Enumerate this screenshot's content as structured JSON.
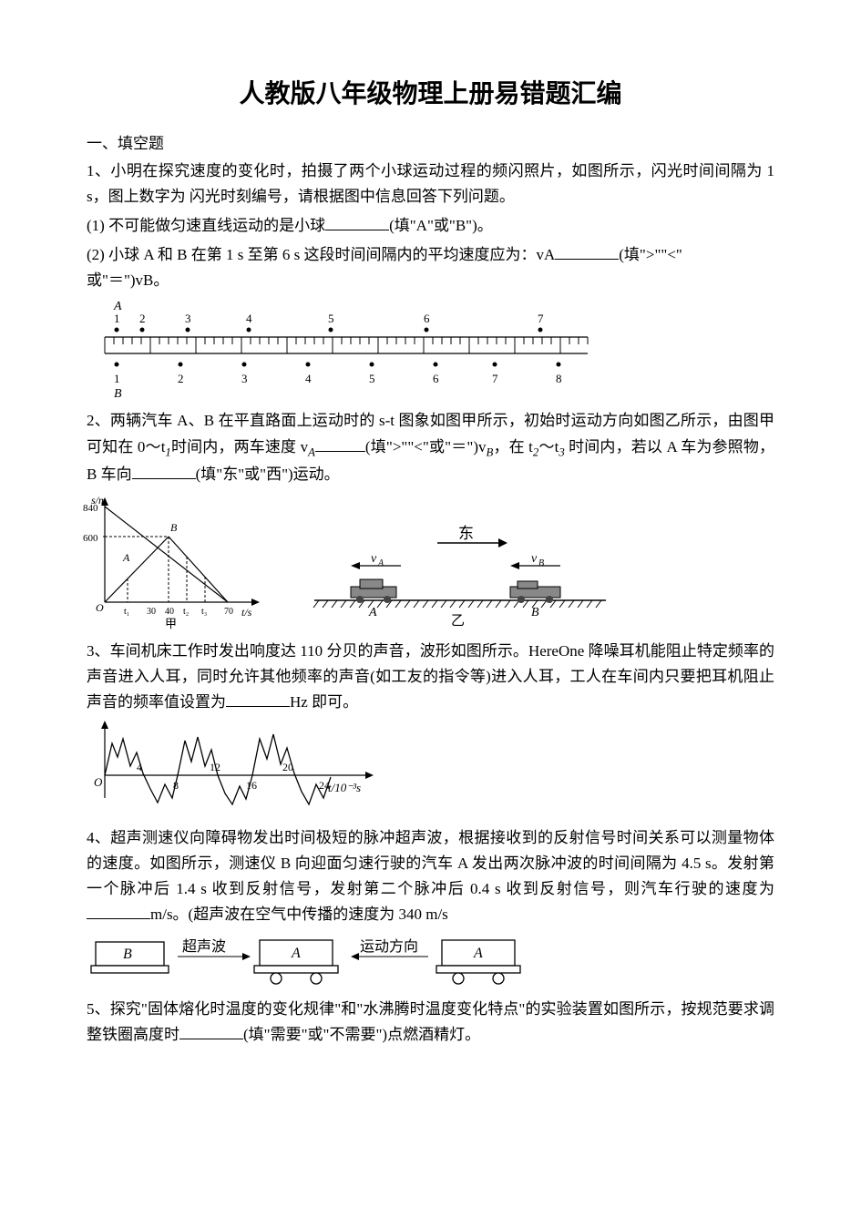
{
  "title": "人教版八年级物理上册易错题汇编",
  "section1_header": "一、填空题",
  "q1": {
    "line1": "1、小明在探究速度的变化时，拍摄了两个小球运动过程的频闪照片，如图所示，闪光时间间隔为 1 s，图上数字为 闪光时刻编号，请根据图中信息回答下列问题。",
    "sub1_pre": "(1)  不可能做匀速直线运动的是小球",
    "sub1_post": "(填\"A\"或\"B\")。",
    "sub2_pre": "(2)  小球 A 和 B 在第 1 s 至第 6 s 这段时间间隔内的平均速度应为：vA",
    "sub2_mid": "(填\">\"\"<\"",
    "sub2_line2": "或\"＝\")vB。",
    "diagram": {
      "topLabels": [
        "1",
        "2",
        "3",
        "4",
        "5",
        "6",
        "7"
      ],
      "topLabelX": [
        30,
        58,
        108,
        175,
        265,
        370,
        495
      ],
      "topDotsX": [
        30,
        58,
        108,
        175,
        265,
        370,
        495
      ],
      "bottomLabels": [
        "1",
        "2",
        "3",
        "4",
        "5",
        "6",
        "7",
        "8"
      ],
      "bottomDotsX": [
        30,
        100,
        170,
        240,
        310,
        380,
        445,
        515
      ],
      "bottomLabelX": [
        30,
        100,
        170,
        240,
        310,
        380,
        445,
        515
      ],
      "rulerLen": 530,
      "tickCount": 53,
      "labelA": "A",
      "labelB": "B"
    }
  },
  "q2": {
    "line1_a": "2、两辆汽车 A、B 在平直路面上运动时的 s-t 图象如图甲所示，初始时运动方向如图乙所示，由图甲可知在 0～t",
    "line1_b": "时间内，两车速度 v",
    "line1_c": "(填\">\"\"<\"或\"＝\")v",
    "line1_d": "，在 t",
    "line1_e": "～t",
    "line1_f": " 时间内，若以 A 车为参照物，B 车向",
    "line1_g": "(填\"东\"或\"西\")运动。",
    "diagram": {
      "yAxisLabel": "s/m",
      "yTicks": [
        {
          "v": 840,
          "y": 15
        },
        {
          "v": 600,
          "y": 48
        }
      ],
      "xTicks": [
        "t₁",
        "30",
        "40",
        "t₂",
        "t₃",
        "70"
      ],
      "xTickX": [
        45,
        70,
        90,
        110,
        130,
        155
      ],
      "xAxisLabel": "t/s",
      "caption": "甲",
      "ptA": "A",
      "ptB": "B",
      "east": "东",
      "vA": "vA",
      "vB": "vB",
      "carA": "A",
      "carB": "B",
      "caption2": "乙"
    }
  },
  "q3": {
    "text_a": "3、车间机床工作时发出响度达 110 分贝的声音，波形如图所示。HereOne 降噪耳机能阻止特定频率的声音进入人耳，同时允许其他频率的声音(如工友的指令等)进入人耳，工人在车间内只要把耳机阻止声音的频率值设置为",
    "text_b": "Hz 即可。",
    "diagram": {
      "xTicks": [
        "4",
        "8",
        "12",
        "16",
        "20",
        "24"
      ],
      "xTickX": [
        55,
        95,
        135,
        175,
        215,
        255
      ],
      "xLabel": "t/10⁻³s"
    }
  },
  "q4": {
    "text_a": "4、超声测速仪向障碍物发出时间极短的脉冲超声波，根据接收到的反射信号时间关系可以测量物体的速度。如图所示，测速仪 B 向迎面匀速行驶的汽车 A 发出两次脉冲波的时间间隔为 4.5 s。发射第一个脉冲后 1.4 s 收到反射信号，发射第二个脉冲后 0.4 s 收到反射信号，则汽车行驶的速度为",
    "text_b": "m/s。(超声波在空气中传播的速度为 340 m/s",
    "diagram": {
      "labelB": "B",
      "labelWave": "超声波",
      "labelA1": "A",
      "labelDir": "运动方向",
      "labelA2": "A"
    }
  },
  "q5": {
    "text_a": "5、探究\"固体熔化时温度的变化规律\"和\"水沸腾时温度变化特点\"的实验装置如图所示，按规范要求调整铁圈高度时",
    "text_b": "(填\"需要\"或\"不需要\")点燃酒精灯。"
  },
  "colors": {
    "text": "#000000",
    "bg": "#ffffff",
    "line": "#000000"
  }
}
